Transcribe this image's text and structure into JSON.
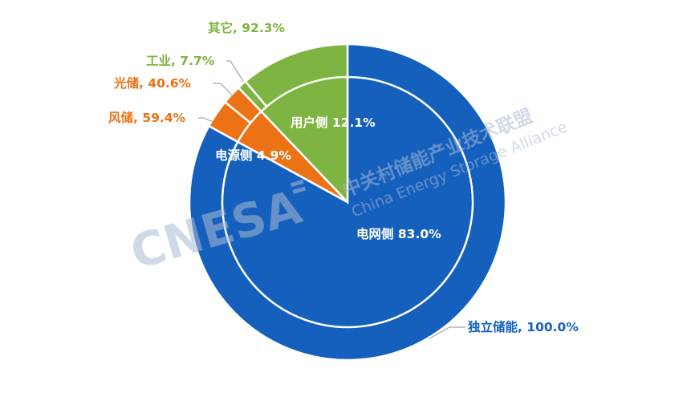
{
  "chart_data": {
    "type": "pie",
    "subtype": "nested-donut",
    "outer_ring": [
      {
        "label": "独立储能, 100.0%",
        "group": "电网侧",
        "share": 83.0,
        "color": "#1560BD",
        "label_color": "#1560BD"
      },
      {
        "label": "风储, 59.4%",
        "group": "电源侧",
        "share": 2.9106,
        "color": "#EB7215",
        "label_color": "#EB7215"
      },
      {
        "label": "光储, 40.6%",
        "group": "电源侧",
        "share": 1.9894,
        "color": "#EB7215",
        "label_color": "#EB7215"
      },
      {
        "label": "工业, 7.7%",
        "group": "用户侧",
        "share": 0.9317,
        "color": "#7EB442",
        "label_color": "#7EB442"
      },
      {
        "label": "其它, 92.3%",
        "group": "用户侧",
        "share": 11.1683,
        "color": "#7EB442",
        "label_color": "#7EB442"
      }
    ],
    "inner_pie": [
      {
        "label": "电网侧 83.0%",
        "value": 83.0,
        "color": "#1560BD"
      },
      {
        "label": "电源侧 4.9%",
        "value": 4.9,
        "color": "#EB7215"
      },
      {
        "label": "用户侧 12.1%",
        "value": 12.1,
        "color": "#7EB442"
      }
    ],
    "leader_line_color": "#A6A6A6",
    "start": "12 o'clock",
    "direction": "clockwise"
  },
  "watermark": {
    "logo": "CNESA",
    "cn_text": "中关村储能产业技术联盟",
    "en_text": "China Energy Storage Alliance",
    "color": "#B3C3D9"
  }
}
